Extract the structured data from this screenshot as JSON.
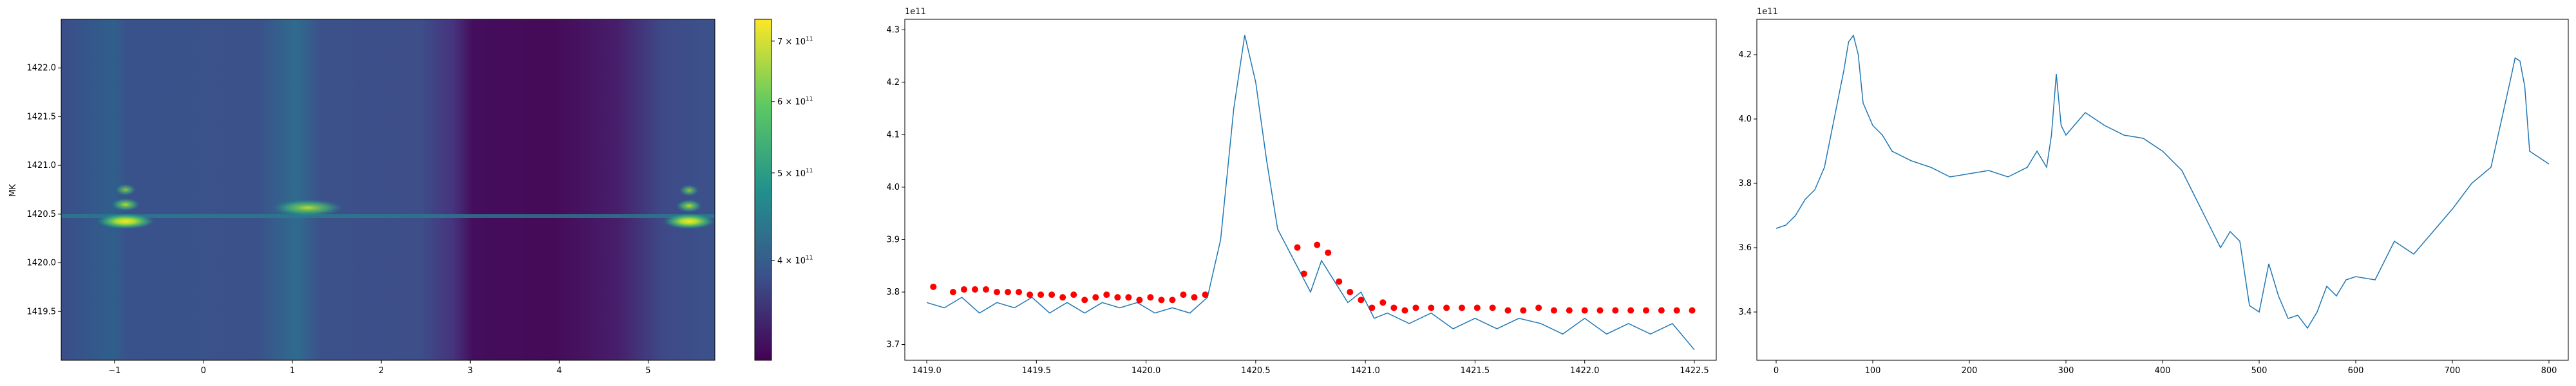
{
  "chart_data": [
    {
      "type": "heatmap",
      "ylabel": "MK",
      "colormap": "viridis",
      "x_ticks": [
        "−1",
        "0",
        "1",
        "2",
        "3",
        "4",
        "5"
      ],
      "x_tick_values": [
        -1,
        0,
        1,
        2,
        3,
        4,
        5
      ],
      "y_ticks": [
        "1419.5",
        "1420.0",
        "1420.5",
        "1421.0",
        "1421.5",
        "1422.0"
      ],
      "y_tick_values": [
        1419.5,
        1420.0,
        1420.5,
        1421.0,
        1421.5,
        1422.0
      ],
      "xlim": [
        -1.6,
        5.75
      ],
      "ylim": [
        1419.0,
        1422.5
      ],
      "colorbar": {
        "scale": "log",
        "range": [
          310000000000.0,
          740000000000.0
        ],
        "ticks": [
          "4 × 10",
          "5 × 10",
          "6 × 10",
          "7 × 10"
        ],
        "tick_values": [
          400000000000.0,
          500000000000.0,
          600000000000.0,
          700000000000.0
        ],
        "exponent": "11"
      }
    },
    {
      "type": "line",
      "offset_label": "1e11",
      "x_ticks": [
        "1419.0",
        "1419.5",
        "1420.0",
        "1420.5",
        "1421.0",
        "1421.5",
        "1422.0",
        "1422.5"
      ],
      "x_tick_values": [
        1419.0,
        1419.5,
        1420.0,
        1420.5,
        1421.0,
        1421.5,
        1422.0,
        1422.5
      ],
      "y_ticks": [
        "3.7",
        "3.8",
        "3.9",
        "4.0",
        "4.1",
        "4.2",
        "4.3"
      ],
      "y_tick_values": [
        3.7,
        3.8,
        3.9,
        4.0,
        4.1,
        4.2,
        4.3
      ],
      "xlim": [
        1418.9,
        1422.6
      ],
      "ylim": [
        3.67,
        4.32
      ],
      "line_color": "#1f77b4",
      "marker_color": "#ff0000",
      "x": [
        1419.0,
        1419.08,
        1419.16,
        1419.24,
        1419.32,
        1419.4,
        1419.48,
        1419.56,
        1419.64,
        1419.72,
        1419.8,
        1419.88,
        1419.96,
        1420.04,
        1420.12,
        1420.2,
        1420.28,
        1420.34,
        1420.4,
        1420.45,
        1420.5,
        1420.55,
        1420.6,
        1420.65,
        1420.7,
        1420.75,
        1420.8,
        1420.86,
        1420.92,
        1420.98,
        1421.04,
        1421.1,
        1421.2,
        1421.3,
        1421.4,
        1421.5,
        1421.6,
        1421.7,
        1421.8,
        1421.9,
        1422.0,
        1422.1,
        1422.2,
        1422.3,
        1422.4,
        1422.5
      ],
      "y": [
        3.78,
        3.77,
        3.79,
        3.76,
        3.78,
        3.77,
        3.79,
        3.76,
        3.78,
        3.76,
        3.78,
        3.77,
        3.78,
        3.76,
        3.77,
        3.76,
        3.79,
        3.9,
        4.15,
        4.29,
        4.2,
        4.05,
        3.92,
        3.88,
        3.84,
        3.8,
        3.86,
        3.82,
        3.78,
        3.8,
        3.75,
        3.76,
        3.74,
        3.76,
        3.73,
        3.75,
        3.73,
        3.75,
        3.74,
        3.72,
        3.75,
        3.72,
        3.74,
        3.72,
        3.74,
        3.69
      ],
      "peaks_x": [
        1419.03,
        1419.12,
        1419.17,
        1419.22,
        1419.27,
        1419.32,
        1419.37,
        1419.42,
        1419.47,
        1419.52,
        1419.57,
        1419.62,
        1419.67,
        1419.72,
        1419.77,
        1419.82,
        1419.87,
        1419.92,
        1419.97,
        1420.02,
        1420.07,
        1420.12,
        1420.17,
        1420.22,
        1420.27,
        1420.69,
        1420.72,
        1420.78,
        1420.83,
        1420.88,
        1420.93,
        1420.98,
        1421.03,
        1421.08,
        1421.13,
        1421.18,
        1421.23,
        1421.3,
        1421.37,
        1421.44,
        1421.51,
        1421.58,
        1421.65,
        1421.72,
        1421.79,
        1421.86,
        1421.93,
        1422.0,
        1422.07,
        1422.14,
        1422.21,
        1422.28,
        1422.35,
        1422.42,
        1422.49
      ],
      "peaks_y": [
        3.81,
        3.8,
        3.805,
        3.805,
        3.805,
        3.8,
        3.8,
        3.8,
        3.795,
        3.795,
        3.795,
        3.79,
        3.795,
        3.785,
        3.79,
        3.795,
        3.79,
        3.79,
        3.785,
        3.79,
        3.785,
        3.785,
        3.795,
        3.79,
        3.795,
        3.885,
        3.835,
        3.89,
        3.875,
        3.82,
        3.8,
        3.785,
        3.77,
        3.78,
        3.77,
        3.765,
        3.77,
        3.77,
        3.77,
        3.77,
        3.77,
        3.77,
        3.765,
        3.765,
        3.77,
        3.765,
        3.765,
        3.765,
        3.765,
        3.765,
        3.765,
        3.765,
        3.765,
        3.765,
        3.765
      ]
    },
    {
      "type": "line",
      "offset_label": "1e11",
      "x_ticks": [
        "0",
        "100",
        "200",
        "300",
        "400",
        "500",
        "600",
        "700",
        "800"
      ],
      "x_tick_values": [
        0,
        100,
        200,
        300,
        400,
        500,
        600,
        700,
        800
      ],
      "y_ticks": [
        "3.4",
        "3.6",
        "3.8",
        "4.0",
        "4.2"
      ],
      "y_tick_values": [
        3.4,
        3.6,
        3.8,
        4.0,
        4.2
      ],
      "xlim": [
        -20,
        820
      ],
      "ylim": [
        3.25,
        4.31
      ],
      "line_color": "#1f77b4",
      "x": [
        0,
        10,
        20,
        30,
        40,
        50,
        60,
        70,
        75,
        80,
        85,
        90,
        100,
        110,
        120,
        140,
        160,
        180,
        200,
        220,
        240,
        260,
        270,
        280,
        285,
        290,
        295,
        300,
        320,
        340,
        360,
        380,
        400,
        420,
        440,
        460,
        470,
        480,
        490,
        500,
        510,
        520,
        530,
        540,
        550,
        560,
        570,
        580,
        590,
        600,
        620,
        640,
        660,
        680,
        700,
        720,
        740,
        760,
        765,
        770,
        775,
        780,
        790,
        800
      ],
      "y": [
        3.66,
        3.67,
        3.7,
        3.75,
        3.78,
        3.85,
        4.0,
        4.15,
        4.24,
        4.26,
        4.2,
        4.05,
        3.98,
        3.95,
        3.9,
        3.87,
        3.85,
        3.82,
        3.83,
        3.84,
        3.82,
        3.85,
        3.9,
        3.85,
        3.95,
        4.14,
        3.98,
        3.95,
        4.02,
        3.98,
        3.95,
        3.94,
        3.9,
        3.84,
        3.72,
        3.6,
        3.65,
        3.62,
        3.42,
        3.4,
        3.55,
        3.45,
        3.38,
        3.39,
        3.35,
        3.4,
        3.48,
        3.45,
        3.5,
        3.51,
        3.5,
        3.62,
        3.58,
        3.65,
        3.72,
        3.8,
        3.85,
        4.12,
        4.19,
        4.18,
        4.1,
        3.9,
        3.88,
        3.86
      ]
    }
  ]
}
